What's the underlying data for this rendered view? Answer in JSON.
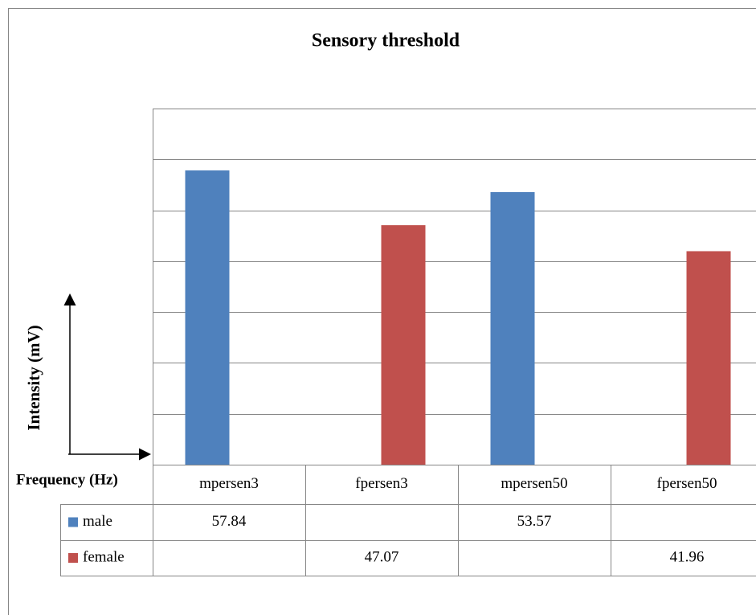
{
  "chart_data": {
    "type": "bar",
    "title": "Sensory threshold",
    "ylabel": "Intensity (mV)",
    "xlabel": "Frequency (Hz)",
    "categories": [
      "mpersen3",
      "fpersen3",
      "mpersen50",
      "fpersen50"
    ],
    "series": [
      {
        "name": "male",
        "color": "#4f81bd",
        "values": [
          57.84,
          null,
          53.57,
          null
        ]
      },
      {
        "name": "female",
        "color": "#c0504d",
        "values": [
          null,
          47.07,
          null,
          41.96
        ]
      }
    ],
    "ylim": [
      0,
      70
    ],
    "yticks": [
      0,
      10,
      20,
      30,
      40,
      50,
      60,
      70
    ],
    "grid": true,
    "data_table": true
  }
}
